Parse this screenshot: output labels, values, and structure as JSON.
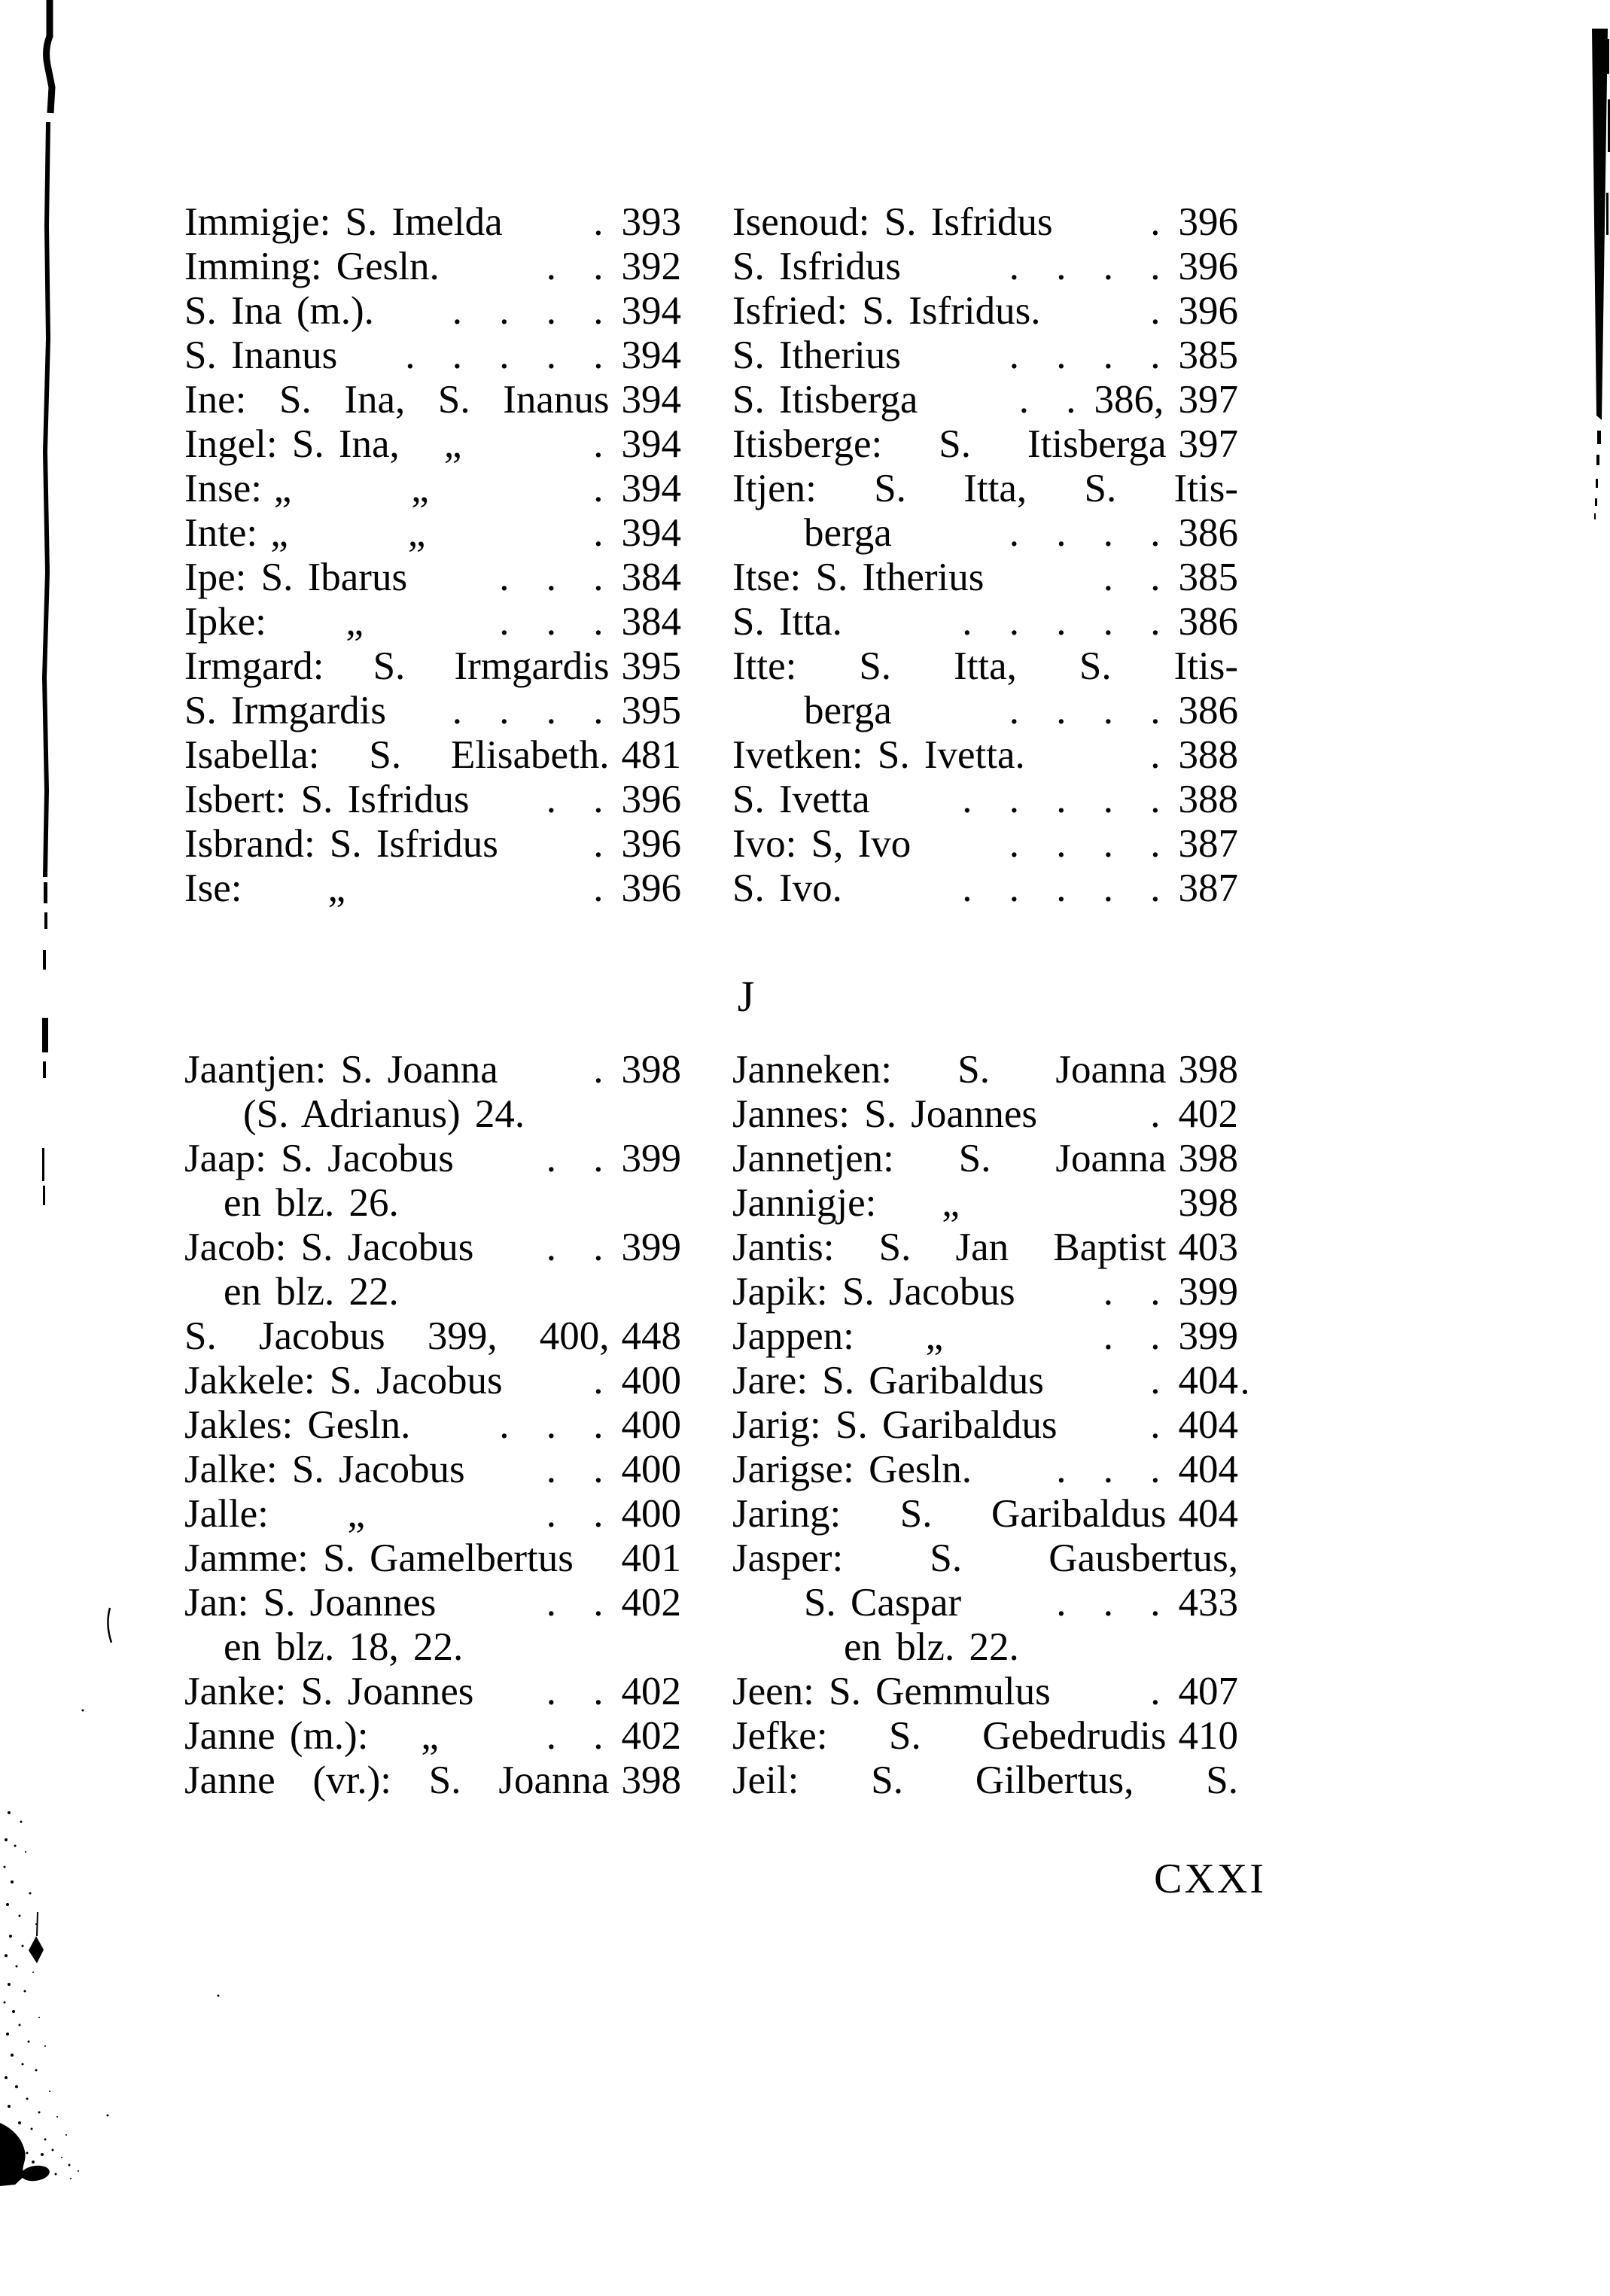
{
  "page": {
    "folio": "CXXI"
  },
  "sections": {
    "j_label": "J"
  },
  "index": {
    "i_left": [
      {
        "name": "Immigje: S. Imelda",
        "dots": 1,
        "page": "393"
      },
      {
        "name": "Imming: Gesln.",
        "dots": 2,
        "page": "392"
      },
      {
        "name": "S. Ina (m.).",
        "dots": 4,
        "page": "394"
      },
      {
        "name": "S. Inanus",
        "dots": 5,
        "page": "394"
      },
      {
        "name": "Ine: S. Ina, S. Inanus",
        "dots": 0,
        "page": "394",
        "justify": true
      },
      {
        "name": "Ingel: S. Ina,",
        "mid": "„",
        "dots": 1,
        "page": "394"
      },
      {
        "name": "Inse:",
        "mid": "„   „",
        "dots": 1,
        "page": "394"
      },
      {
        "name": "Inte:",
        "mid": "„   „",
        "dots": 1,
        "page": "394"
      },
      {
        "name": "Ipe: S. Ibarus",
        "dots": 3,
        "page": "384"
      },
      {
        "name": "Ipke:",
        "mid": "„",
        "dots": 3,
        "page": "384"
      },
      {
        "name": "Irmgard: S. Irmgardis",
        "dots": 0,
        "page": "395",
        "justify": true
      },
      {
        "name": "S. Irmgardis",
        "dots": 4,
        "page": "395"
      },
      {
        "name": "Isabella: S. Elisabeth.",
        "dots": 0,
        "page": "481",
        "justify": true
      },
      {
        "name": "Isbert: S. Isfridus",
        "dots": 2,
        "page": "396"
      },
      {
        "name": "Isbrand: S. Isfridus",
        "dots": 1,
        "page": "396"
      },
      {
        "name": "Ise:",
        "mid": "„",
        "dots": 1,
        "page": "396"
      }
    ],
    "i_right": [
      {
        "name": "Isenoud: S. Isfridus",
        "dots": 1,
        "page": "396"
      },
      {
        "name": "S. Isfridus",
        "dots": 4,
        "page": "396"
      },
      {
        "name": "Isfried: S. Isfridus.",
        "dots": 1,
        "page": "396"
      },
      {
        "name": "S. Itherius",
        "dots": 4,
        "page": "385"
      },
      {
        "name": "S. Itisberga",
        "dots": 2,
        "page": "386, 397"
      },
      {
        "name": "Itisberge: S. Itisberga",
        "dots": 0,
        "page": "397",
        "justify": true
      },
      {
        "name": "Itjen: S. Itta, S. Itis-",
        "dots": 0,
        "page": "",
        "justify": true
      },
      {
        "name": "berga",
        "dots": 4,
        "page": "386",
        "indent": 3
      },
      {
        "name": "Itse: S. Itherius",
        "dots": 2,
        "page": "385"
      },
      {
        "name": "S. Itta.",
        "dots": 5,
        "page": "386"
      },
      {
        "name": "Itte: S. Itta, S. Itis-",
        "dots": 0,
        "page": "",
        "justify": true
      },
      {
        "name": "berga",
        "dots": 4,
        "page": "386",
        "indent": 3
      },
      {
        "name": "Ivetken: S. Ivetta.",
        "dots": 1,
        "page": "388"
      },
      {
        "name": "S. Ivetta",
        "dots": 5,
        "page": "388"
      },
      {
        "name": "Ivo: S, Ivo",
        "dots": 4,
        "page": "387"
      },
      {
        "name": "S. Ivo.",
        "dots": 5,
        "page": "387"
      }
    ],
    "j_left": [
      {
        "name": "Jaantjen: S. Joanna",
        "dots": 1,
        "page": "398"
      },
      {
        "name": "(S. Adrianus) 24.",
        "dots": 0,
        "page": "",
        "indent": 2
      },
      {
        "name": "Jaap: S. Jacobus",
        "dots": 2,
        "page": "399"
      },
      {
        "name": "en blz. 26.",
        "dots": 0,
        "page": "",
        "indent": 1
      },
      {
        "name": "Jacob: S. Jacobus",
        "dots": 2,
        "page": "399"
      },
      {
        "name": "en blz. 22.",
        "dots": 0,
        "page": "",
        "indent": 1
      },
      {
        "name": "S. Jacobus 399, 400,",
        "dots": 0,
        "page": "448",
        "justify": true
      },
      {
        "name": "Jakkele: S. Jacobus",
        "dots": 1,
        "page": "400"
      },
      {
        "name": "Jakles: Gesln.",
        "dots": 3,
        "page": "400"
      },
      {
        "name": "Jalke: S. Jacobus",
        "dots": 2,
        "page": "400"
      },
      {
        "name": "Jalle:",
        "mid": "„",
        "dots": 2,
        "page": "400"
      },
      {
        "name": "Jamme: S. Gamelbertus",
        "dots": 0,
        "page": "401"
      },
      {
        "name": "Jan: S. Joannes",
        "dots": 2,
        "page": "402"
      },
      {
        "name": "en blz. 18, 22.",
        "dots": 0,
        "page": "",
        "indent": 1
      },
      {
        "name": "Janke: S. Joannes",
        "dots": 2,
        "page": "402"
      },
      {
        "name": "Janne (m.):",
        "mid": "„",
        "dots": 2,
        "page": "402"
      },
      {
        "name": "Janne (vr.): S. Joanna",
        "dots": 0,
        "page": "398",
        "justify": true
      }
    ],
    "j_right": [
      {
        "name": "Janneken: S. Joanna",
        "dots": 0,
        "page": "398",
        "justify": true
      },
      {
        "name": "Jannes: S. Joannes",
        "dots": 1,
        "page": "402"
      },
      {
        "name": "Jannetjen: S. Joanna",
        "dots": 0,
        "page": "398",
        "justify": true
      },
      {
        "name": "Jannigje:",
        "mid": "„",
        "dots": 0,
        "page": "398"
      },
      {
        "name": "Jantis: S. Jan Baptist",
        "dots": 0,
        "page": "403",
        "justify": true
      },
      {
        "name": "Japik: S. Jacobus",
        "dots": 2,
        "page": "399"
      },
      {
        "name": "Jappen:",
        "mid": "„",
        "dots": 2,
        "page": "399"
      },
      {
        "name": "Jare: S. Garibaldus",
        "dots": 1,
        "page": "404"
      },
      {
        "name": "Jarig: S. Garibaldus",
        "dots": 1,
        "page": "404"
      },
      {
        "name": "Jarigse: Gesln.",
        "dots": 3,
        "page": "404"
      },
      {
        "name": "Jaring: S. Garibaldus",
        "dots": 0,
        "page": "404",
        "justify": true
      },
      {
        "name": "Jasper: S. Gausbertus,",
        "dots": 0,
        "page": "",
        "justify": true
      },
      {
        "name": "S. Caspar",
        "dots": 3,
        "page": "433",
        "indent": 3
      },
      {
        "name": "en blz. 22.",
        "dots": 0,
        "page": "",
        "indent": 4
      },
      {
        "name": "Jeen: S. Gemmulus",
        "dots": 1,
        "page": "407"
      },
      {
        "name": "Jefke: S. Gebedrudis",
        "dots": 0,
        "page": "410",
        "justify": true
      },
      {
        "name": "Jeil: S. Gilbertus, S.",
        "dots": 0,
        "page": "",
        "justify": true
      }
    ]
  }
}
